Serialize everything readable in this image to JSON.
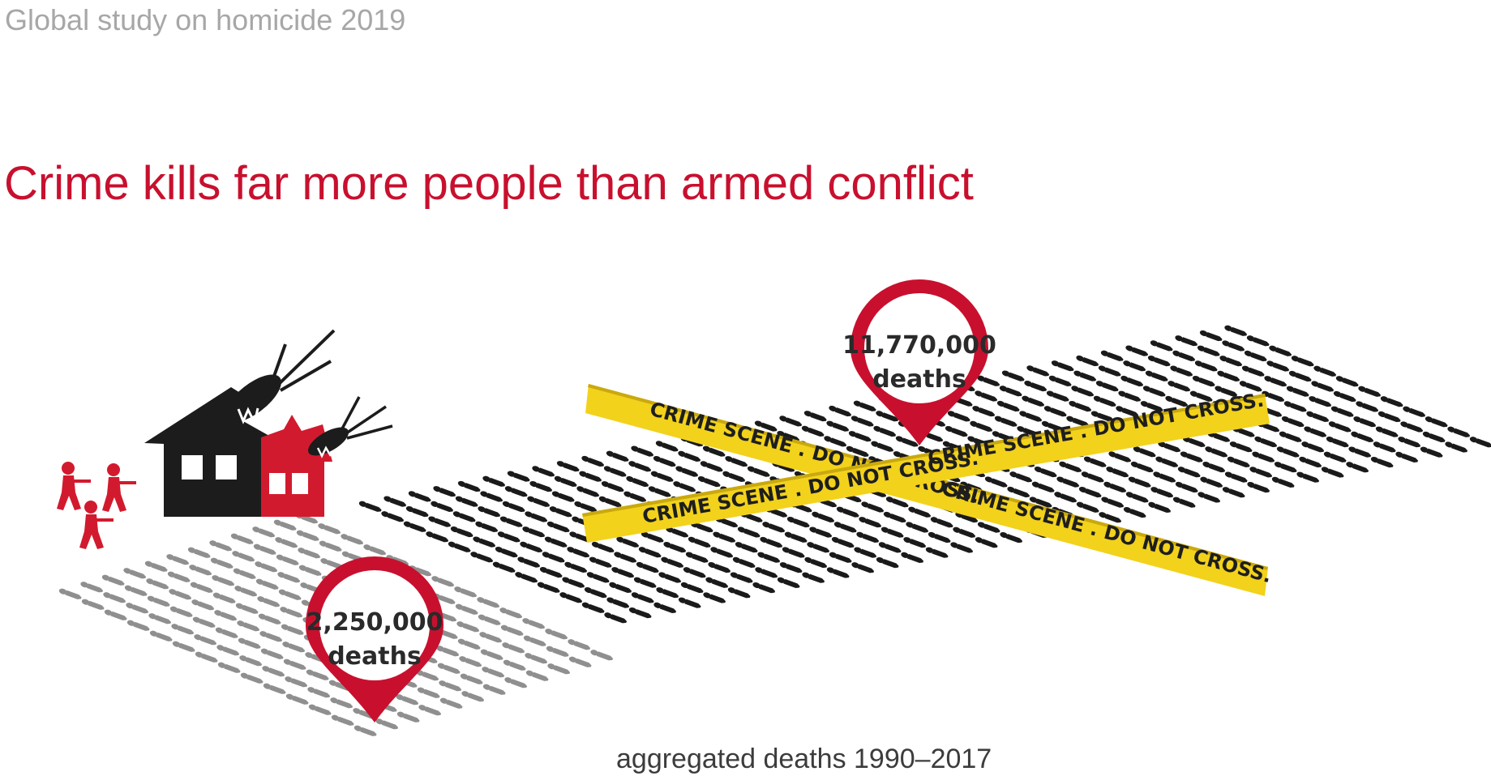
{
  "header": {
    "text": "Global study on homicide 2019"
  },
  "title": {
    "text": "Crime kills far more people than armed conflict"
  },
  "caption": {
    "text": "aggregated deaths 1990–2017"
  },
  "conflict_deaths": {
    "value": "2,250,000",
    "unit": "deaths"
  },
  "homicide_deaths": {
    "value": "11,770,000",
    "unit": "deaths"
  },
  "tape": {
    "text": "CRIME SCENE . DO NOT CROSS."
  },
  "colors": {
    "accent": "#c8102e",
    "header_grey": "#a7a7a7",
    "tape_yellow": "#f2d21b",
    "figure_black": "#1a1a1a",
    "figure_grey": "#8f8f8f"
  },
  "icons": [
    "soldier-icon",
    "burning-house-icon",
    "missile-icon",
    "map-pin-icon",
    "person-figure-icon"
  ]
}
